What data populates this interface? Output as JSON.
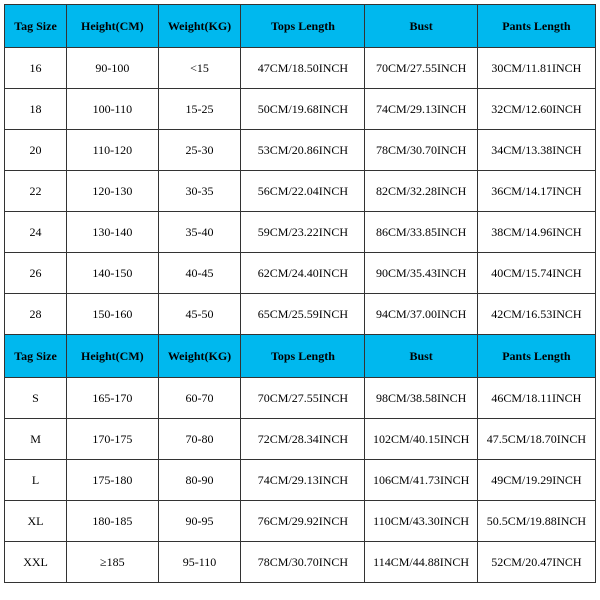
{
  "table": {
    "type": "table",
    "background_color": "#ffffff",
    "border_color": "#333333",
    "header_bg": "#00b8ee",
    "header_fontsize": 12,
    "cell_fontsize": 12,
    "font_family": "SimSun",
    "text_color": "#000000",
    "column_widths_pct": [
      10.5,
      15.5,
      14,
      21,
      19,
      20
    ],
    "columns": [
      "Tag Size",
      "Height(CM)",
      "Weight(KG)",
      "Tops Length",
      "Bust",
      "Pants Length"
    ],
    "sections": [
      {
        "header": [
          "Tag Size",
          "Height(CM)",
          "Weight(KG)",
          "Tops Length",
          "Bust",
          "Pants Length"
        ],
        "rows": [
          [
            "16",
            "90-100",
            "<15",
            "47CM/18.50INCH",
            "70CM/27.55INCH",
            "30CM/11.81INCH"
          ],
          [
            "18",
            "100-110",
            "15-25",
            "50CM/19.68INCH",
            "74CM/29.13INCH",
            "32CM/12.60INCH"
          ],
          [
            "20",
            "110-120",
            "25-30",
            "53CM/20.86INCH",
            "78CM/30.70INCH",
            "34CM/13.38INCH"
          ],
          [
            "22",
            "120-130",
            "30-35",
            "56CM/22.04INCH",
            "82CM/32.28INCH",
            "36CM/14.17INCH"
          ],
          [
            "24",
            "130-140",
            "35-40",
            "59CM/23.22INCH",
            "86CM/33.85INCH",
            "38CM/14.96INCH"
          ],
          [
            "26",
            "140-150",
            "40-45",
            "62CM/24.40INCH",
            "90CM/35.43INCH",
            "40CM/15.74INCH"
          ],
          [
            "28",
            "150-160",
            "45-50",
            "65CM/25.59INCH",
            "94CM/37.00INCH",
            "42CM/16.53INCH"
          ]
        ]
      },
      {
        "header": [
          "Tag Size",
          "Height(CM)",
          "Weight(KG)",
          "Tops Length",
          "Bust",
          "Pants Length"
        ],
        "rows": [
          [
            "S",
            "165-170",
            "60-70",
            "70CM/27.55INCH",
            "98CM/38.58INCH",
            "46CM/18.11INCH"
          ],
          [
            "M",
            "170-175",
            "70-80",
            "72CM/28.34INCH",
            "102CM/40.15INCH",
            "47.5CM/18.70INCH"
          ],
          [
            "L",
            "175-180",
            "80-90",
            "74CM/29.13INCH",
            "106CM/41.73INCH",
            "49CM/19.29INCH"
          ],
          [
            "XL",
            "180-185",
            "90-95",
            "76CM/29.92INCH",
            "110CM/43.30INCH",
            "50.5CM/19.88INCH"
          ],
          [
            "XXL",
            "≥185",
            "95-110",
            "78CM/30.70INCH",
            "114CM/44.88INCH",
            "52CM/20.47INCH"
          ]
        ]
      }
    ]
  }
}
